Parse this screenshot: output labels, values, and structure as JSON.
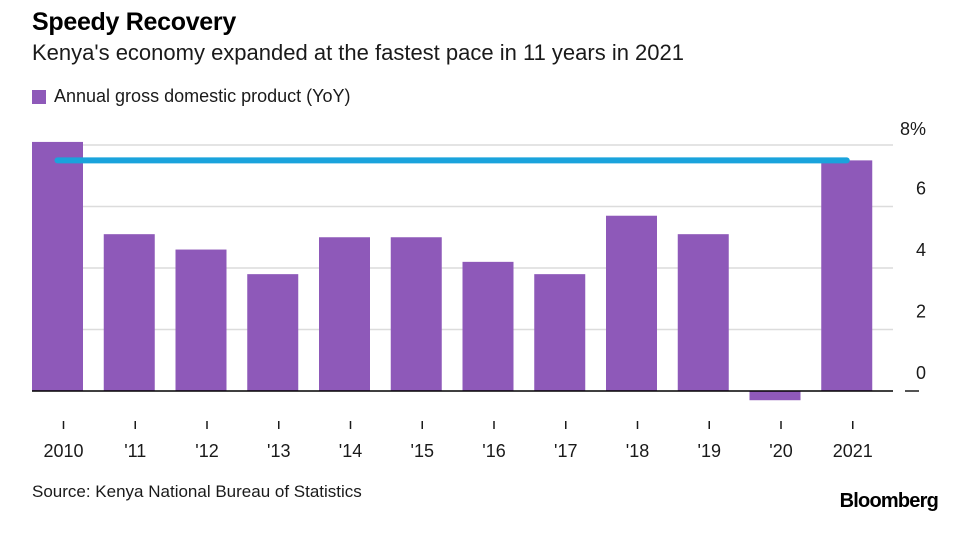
{
  "header": {
    "title": "Speedy Recovery",
    "subtitle": "Kenya's economy expanded at the fastest pace in 11 years in 2021"
  },
  "legend": {
    "label": "Annual gross domestic product (YoY)"
  },
  "footer": {
    "source": "Source: Kenya National Bureau of Statistics",
    "brand": "Bloomberg"
  },
  "colors": {
    "bar": "#8e59b9",
    "reference_line": "#1aa3dc",
    "grid": "#dcdcdc",
    "baseline": "#000000",
    "text": "#1a1a1a"
  },
  "chart_data": {
    "type": "bar",
    "categories": [
      "2010",
      "'11",
      "'12",
      "'13",
      "'14",
      "'15",
      "'16",
      "'17",
      "'18",
      "'19",
      "'20",
      "2021"
    ],
    "series": [
      {
        "name": "Annual gross domestic product (YoY)",
        "values": [
          8.1,
          5.1,
          4.6,
          3.8,
          5.0,
          5.0,
          4.2,
          3.8,
          5.7,
          5.1,
          -0.3,
          7.5
        ]
      }
    ],
    "reference_line": {
      "value": 7.5,
      "from": "2010",
      "to": "2021"
    },
    "y_ticks": [
      {
        "value": 0,
        "label": "0"
      },
      {
        "value": 2,
        "label": "2"
      },
      {
        "value": 4,
        "label": "4"
      },
      {
        "value": 6,
        "label": "6"
      },
      {
        "value": 8,
        "label": "8%"
      }
    ],
    "ylim": [
      -0.3,
      8.1
    ],
    "grid": true,
    "y_axis_side": "right",
    "legend_position": "top-left"
  }
}
